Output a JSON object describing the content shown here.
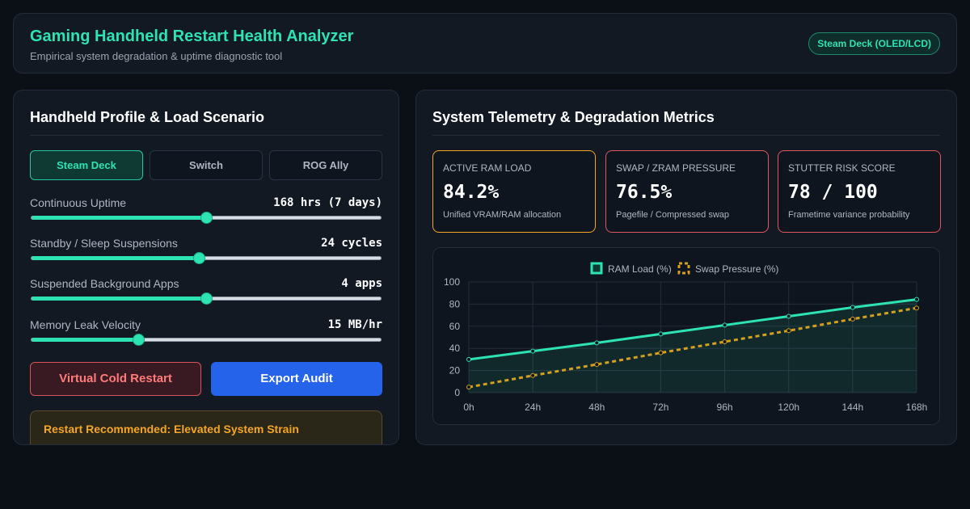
{
  "header": {
    "title": "Gaming Handheld Restart Health Analyzer",
    "subtitle": "Empirical system degradation & uptime diagnostic tool",
    "badge": "Steam Deck (OLED/LCD)"
  },
  "left_panel": {
    "title": "Handheld Profile & Load Scenario",
    "tabs": [
      {
        "label": "Steam Deck",
        "active": true
      },
      {
        "label": "Switch",
        "active": false
      },
      {
        "label": "ROG Ally",
        "active": false
      }
    ],
    "sliders": [
      {
        "label": "Continuous Uptime",
        "value": "168 hrs (7 days)",
        "level": 0.5
      },
      {
        "label": "Standby / Sleep Suspensions",
        "value": "24 cycles",
        "level": 0.48
      },
      {
        "label": "Suspended Background Apps",
        "value": "4 apps",
        "level": 0.5
      },
      {
        "label": "Memory Leak Velocity",
        "value": "15 MB/hr",
        "level": 0.305
      }
    ],
    "restart_button": "Virtual Cold Restart",
    "export_button": "Export Audit",
    "alert": "Restart Recommended: Elevated System Strain"
  },
  "right_panel": {
    "title": "System Telemetry & Degradation Metrics",
    "metrics": [
      {
        "label": "ACTIVE RAM LOAD",
        "value": "84.2%",
        "sub": "Unified VRAM/RAM allocation",
        "color": "#f5a623"
      },
      {
        "label": "SWAP / ZRAM PRESSURE",
        "value": "76.5%",
        "sub": "Pagefile / Compressed swap",
        "color": "#e0565b"
      },
      {
        "label": "STUTTER RISK SCORE",
        "value": "78 / 100",
        "sub": "Frametime variance probability",
        "color": "#e0565b"
      }
    ]
  },
  "chart_data": {
    "type": "line",
    "title": "",
    "xlabel": "",
    "ylabel": "",
    "categories": [
      "0h",
      "24h",
      "48h",
      "72h",
      "96h",
      "120h",
      "144h",
      "168h"
    ],
    "ylim": [
      0,
      100
    ],
    "yticks": [
      0,
      20,
      40,
      60,
      80,
      100
    ],
    "legend_position": "top-center",
    "grid": true,
    "series": [
      {
        "name": "RAM Load (%)",
        "color": "#2de3b4",
        "style": "solid",
        "fill": true,
        "values": [
          30,
          37.5,
          45,
          53,
          61,
          69,
          77,
          84.2
        ]
      },
      {
        "name": "Swap Pressure (%)",
        "color": "#d4a020",
        "style": "dashed",
        "fill": false,
        "values": [
          5,
          15.5,
          25.5,
          36,
          46,
          56,
          66.5,
          76.5
        ]
      }
    ]
  }
}
